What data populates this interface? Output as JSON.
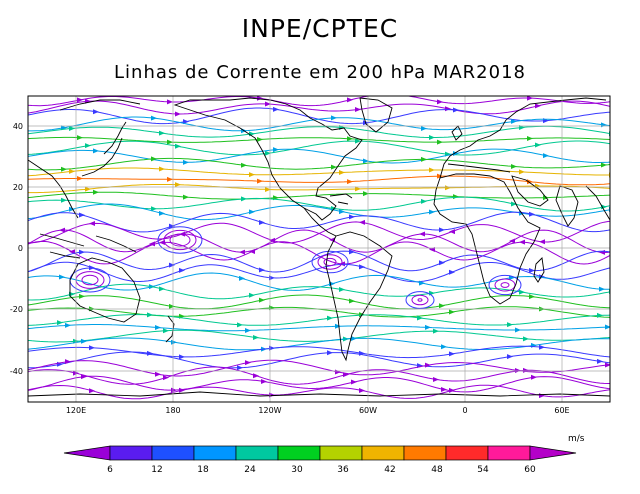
{
  "header": {
    "title": "INPE/CPTEC",
    "subtitle": "Linhas de Corrente em 200 hPa MAR2018"
  },
  "map": {
    "lon_labels": [
      "120E",
      "180",
      "120W",
      "60W",
      "0",
      "60E"
    ],
    "lat_labels": [
      "40",
      "20",
      "0",
      "-20",
      "-40"
    ]
  },
  "colorbar": {
    "unit": "m/s",
    "labels": [
      "6",
      "12",
      "18",
      "24",
      "30",
      "36",
      "42",
      "48",
      "54",
      "60"
    ],
    "colors": [
      "#9a00d8",
      "#5a1cf0",
      "#1e50ff",
      "#0096ff",
      "#00c8a0",
      "#00d020",
      "#b4d200",
      "#f0b400",
      "#ff7a00",
      "#ff2a2a",
      "#ff1a9a",
      "#b400c8"
    ]
  },
  "streamline_colors": {
    "weak": "#9a00d8",
    "light": "#3a3aff",
    "moderate": "#00a0e6",
    "fresh": "#00c890",
    "strong": "#20c020",
    "jet": "#e6b400",
    "core": "#ff6a00"
  }
}
